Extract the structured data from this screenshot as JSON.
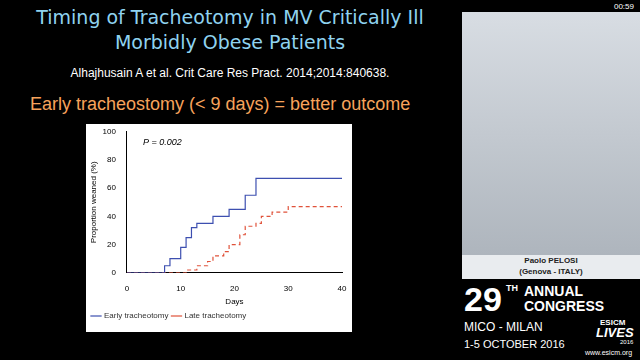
{
  "slide": {
    "title": [
      "Timing of Tracheotomy in MV Critically Ill",
      "Morbidly Obese Patients"
    ],
    "citation": "Alhajhusain A et al. Crit Care Res Pract. 2014;2014:840638.",
    "subtitle": "Early tracheostomy (< 9 days) = better outcome",
    "timestamp": "00:59",
    "speaker": [
      "Paolo PELOSI",
      "(Genova - ITALY)"
    ],
    "banner": {
      "number": "29",
      "suffix": "TH",
      "lines": [
        "ANNUAL",
        "CONGRESS"
      ],
      "venue": "MICO - MILAN",
      "dates": "1-5 OCTOBER 2016",
      "logo": [
        "ESICM",
        "LIVES",
        "2016"
      ],
      "url": "www.esicm.org"
    }
  },
  "chart_data": {
    "type": "line",
    "annotation": "P = 0.002",
    "x_label": "Days",
    "y_label": "Proportion weaned (%)",
    "xlim": [
      0,
      40
    ],
    "xticks": [
      0,
      10,
      20,
      30,
      40
    ],
    "ylim": [
      0,
      100
    ],
    "yticks": [
      0,
      20,
      40,
      60,
      80,
      100
    ],
    "grid": false,
    "legend": "bottom left",
    "series": [
      {
        "name": "Early tracheotomy",
        "color": "#3d4fb0",
        "line_style": "solid",
        "marker": "none",
        "x": [
          0,
          7,
          8,
          10,
          11,
          12,
          13,
          16,
          19,
          22,
          24,
          40
        ],
        "values": [
          0,
          5,
          10,
          18,
          25,
          32,
          35,
          40,
          45,
          55,
          67,
          67
        ]
      },
      {
        "name": "Late tracheotomy",
        "color": "#e0523a",
        "line_style": "dashed",
        "marker": "none",
        "x": [
          0,
          11,
          13,
          15,
          16,
          18,
          19,
          21,
          22,
          24,
          25,
          27,
          30,
          40
        ],
        "values": [
          0,
          2,
          5,
          8,
          12,
          15,
          20,
          27,
          33,
          35,
          40,
          43,
          47,
          47
        ]
      }
    ]
  }
}
